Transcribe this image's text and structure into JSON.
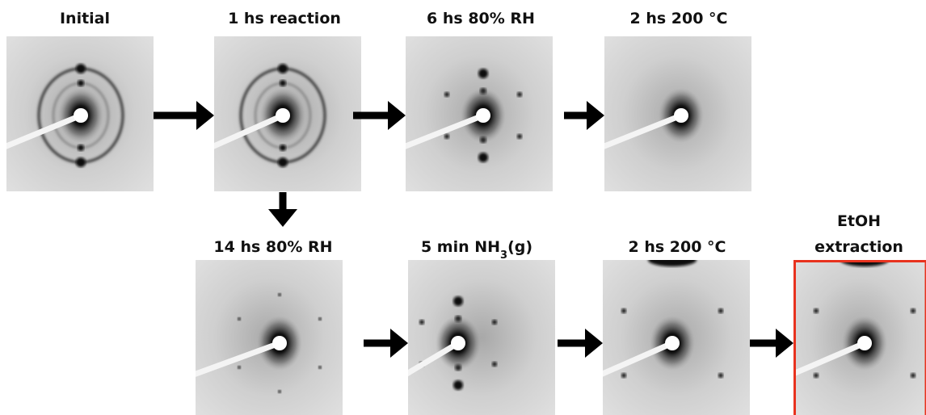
{
  "nodes": [
    {
      "label": "Initial"
    },
    {
      "label": "1 hs reaction"
    },
    {
      "label": "6 hs 80% RH"
    },
    {
      "label": "2 hs 200 °C"
    },
    {
      "label": "14 hs 80% RH"
    },
    {
      "label": [
        "5 min NH",
        "3",
        "(g)"
      ]
    },
    {
      "label": "2 hs 200 °C"
    },
    {
      "label": [
        "EtOH",
        "extraction"
      ]
    }
  ]
}
